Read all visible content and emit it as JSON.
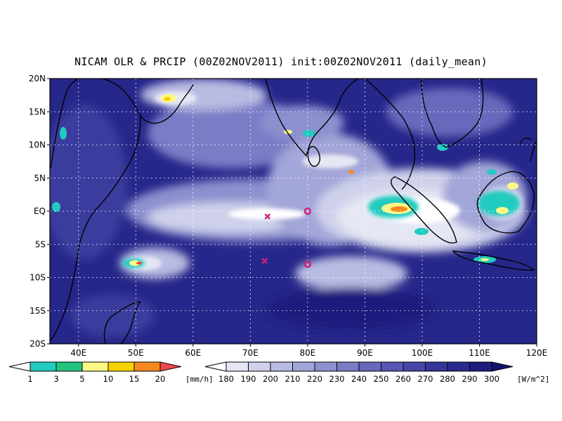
{
  "title": "NICAM OLR & PRCIP (00Z02NOV2011) init:00Z02NOV2011 (daily_mean)",
  "map": {
    "region": {
      "lon": [
        35,
        120
      ],
      "lat": [
        -20,
        20
      ]
    },
    "grid": true,
    "lon_ticks": [
      "40E",
      "50E",
      "60E",
      "70E",
      "80E",
      "90E",
      "100E",
      "110E",
      "120E"
    ],
    "lat_ticks": [
      "20N",
      "15N",
      "10N",
      "5N",
      "EQ",
      "5S",
      "10S",
      "15S",
      "20S"
    ],
    "markers": [
      {
        "type": "x-mark",
        "lon": 73,
        "lat": -0.8,
        "color": "#d0207a"
      },
      {
        "type": "circle-mark",
        "lon": 80,
        "lat": 0,
        "color": "#d0207a"
      },
      {
        "type": "x-mark",
        "lon": 72.5,
        "lat": -7.5,
        "color": "#d0207a"
      },
      {
        "type": "circle-mark",
        "lon": 80,
        "lat": -8,
        "color": "#d0207a"
      }
    ]
  },
  "precip_colorbar": {
    "labels": [
      "1",
      "3",
      "5",
      "10",
      "15",
      "20"
    ],
    "unit": "[mm/h]",
    "colors": [
      "#ffffff",
      "#21cbbf",
      "#22c47f",
      "#fdf885",
      "#f6d200",
      "#f5871f",
      "#f04a4a"
    ]
  },
  "olr_colorbar": {
    "labels": [
      "180",
      "190",
      "200",
      "210",
      "220",
      "230",
      "240",
      "250",
      "260",
      "270",
      "280",
      "290",
      "300"
    ],
    "unit": "[W/m^2]",
    "colors": [
      "#ffffff",
      "#e6e7f4",
      "#cfd1eb",
      "#b9bbe2",
      "#a3a6d8",
      "#8d90cf",
      "#7a7cc6",
      "#6868bc",
      "#5657b2",
      "#4546a7",
      "#35369a",
      "#28298c",
      "#1c1d7e",
      "#121270"
    ]
  }
}
